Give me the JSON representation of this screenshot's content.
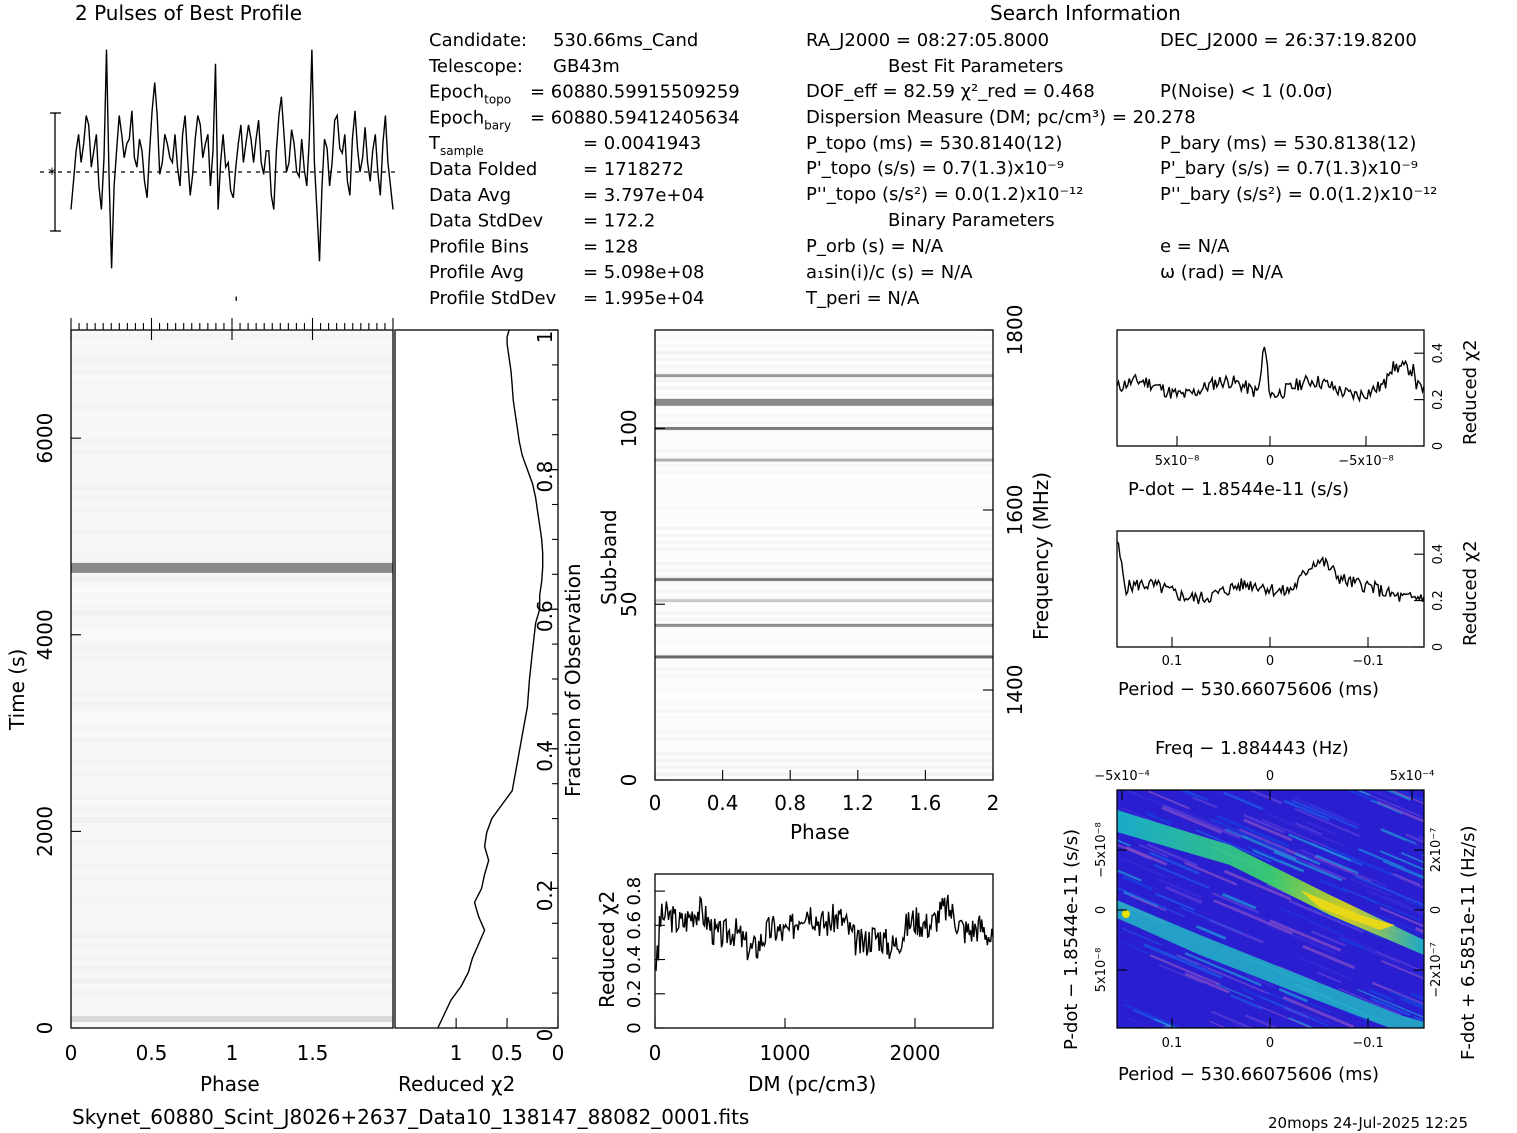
{
  "colors": {
    "ink": "#000000",
    "paper": "#ffffff",
    "plane_low": "#2a1fd0",
    "plane_high": "#f0e000"
  },
  "header": {
    "profile_title": "2 Pulses of Best Profile",
    "search_title": "Search Information",
    "best_fit_title": "Best Fit Parameters",
    "binary_title": "Binary Parameters"
  },
  "info_left": [
    {
      "label": "Candidate:",
      "sub": "",
      "value": "530.66ms_Cand"
    },
    {
      "label": "Telescope:",
      "sub": "",
      "value": "GB43m"
    },
    {
      "label": "Epoch",
      "sub": "topo",
      "value": "= 60880.59915509259"
    },
    {
      "label": "Epoch",
      "sub": "bary",
      "value": "= 60880.59412405634"
    },
    {
      "label": "T",
      "sub": "sample",
      "value": "=   0.0041943"
    },
    {
      "label": "Data Folded",
      "sub": "",
      "value": "=   1718272"
    },
    {
      "label": "Data Avg",
      "sub": "",
      "value": "=   3.797e+04"
    },
    {
      "label": "Data StdDev",
      "sub": "",
      "value": "=   172.2"
    },
    {
      "label": "Profile Bins",
      "sub": "",
      "value": "=   128"
    },
    {
      "label": "Profile Avg",
      "sub": "",
      "value": "=   5.098e+08"
    },
    {
      "label": "Profile StdDev",
      "sub": "",
      "value": "=   1.995e+04"
    }
  ],
  "info_mid": {
    "ra": "RA_J2000 = 08:27:05.8000",
    "dof": "DOF_eff = 82.59  χ²_red = 0.468",
    "dm": "Dispersion Measure (DM; pc/cm³) = 20.278",
    "p_topo": "P_topo (ms) =  530.8140(12)",
    "pd_topo": "P'_topo (s/s) =  0.7(1.3)x10⁻⁹",
    "pdd_topo": "P''_topo (s/s²) = 0.0(1.2)x10⁻¹²",
    "p_orb": "P_orb (s) = N/A",
    "a1": "a₁sin(i)/c (s) = N/A",
    "t_peri": "T_peri = N/A"
  },
  "info_right": {
    "dec": "DEC_J2000 = 26:37:19.8200",
    "p_noise": "P(Noise) < 1   (0.0σ)",
    "p_bary": "P_bary (ms) =  530.8138(12)",
    "pd_bary": "P'_bary (s/s) =  0.7(1.3)x10⁻⁹",
    "pdd_bary": "P''_bary (s/s²) = 0.0(1.2)x10⁻¹²",
    "e": "e = N/A",
    "omega": "ω (rad) = N/A"
  },
  "footer": {
    "filename": "Skynet_60880_Scint_J8026+2637_Data10_138147_88082_0001.fits",
    "stamp": "20mops 24-Jul-2025 12:25"
  },
  "chart_data": [
    {
      "id": "profile",
      "type": "line",
      "title": "2 Pulses of Best Profile",
      "xlim": [
        0,
        2
      ],
      "note_scale": "normalized",
      "y": [
        0.3,
        0.42,
        0.55,
        0.62,
        0.5,
        0.58,
        0.7,
        0.66,
        0.48,
        0.55,
        0.62,
        0.4,
        0.3,
        0.52,
        0.98,
        0.45,
        0.05,
        0.4,
        0.55,
        0.7,
        0.62,
        0.52,
        0.58,
        0.6,
        0.72,
        0.52,
        0.48,
        0.6,
        0.55,
        0.42,
        0.35,
        0.55,
        0.72,
        0.84,
        0.7,
        0.45,
        0.5,
        0.62,
        0.58,
        0.52,
        0.5,
        0.62,
        0.48,
        0.4,
        0.62,
        0.7,
        0.52,
        0.36,
        0.45,
        0.6,
        0.7,
        0.66,
        0.52,
        0.58,
        0.62,
        0.4,
        0.55,
        0.92,
        0.3,
        0.5,
        0.62,
        0.48,
        0.5,
        0.38,
        0.35,
        0.48,
        0.58,
        0.66,
        0.5,
        0.58,
        0.66,
        0.6,
        0.5,
        0.6,
        0.68,
        0.5,
        0.45,
        0.55,
        0.55,
        0.36,
        0.3,
        0.55,
        0.7,
        0.78,
        0.62,
        0.46,
        0.5,
        0.64,
        0.58,
        0.46,
        0.44,
        0.6,
        0.47,
        0.4,
        0.6,
        0.98,
        0.5,
        0.3,
        0.08,
        0.4,
        0.6,
        0.56,
        0.4,
        0.5,
        0.68,
        0.7,
        0.56,
        0.54,
        0.62,
        0.42,
        0.36,
        0.6,
        0.72,
        0.56,
        0.46,
        0.52,
        0.65,
        0.5,
        0.42,
        0.55,
        0.62,
        0.46,
        0.36,
        0.58,
        0.7,
        0.5,
        0.4,
        0.3
      ]
    },
    {
      "id": "time_phase",
      "type": "heatmap",
      "xlabel": "Phase",
      "ylabel": "Time (s)",
      "xlim": [
        0,
        2
      ],
      "ylim": [
        0,
        7100
      ],
      "xticks": [
        "0",
        "0.5",
        "1",
        "1.5"
      ],
      "yticks": [
        "0",
        "2000",
        "4000",
        "6000"
      ],
      "bright_band_time": 4680
    },
    {
      "id": "chi_vs_time",
      "type": "line",
      "xlabel": "Reduced χ2",
      "ylabel": "Fraction of Observation",
      "xlim": [
        1.6,
        0
      ],
      "ylim": [
        0,
        1
      ],
      "xticks": [
        "1",
        "0.5",
        "0"
      ],
      "yticks": [
        "0",
        "0.2",
        "0.4",
        "0.6",
        "0.8",
        "1"
      ],
      "x": [
        1.18,
        1.05,
        0.95,
        0.88,
        0.84,
        0.72,
        0.78,
        0.82,
        0.75,
        0.72,
        0.68,
        0.72,
        0.7,
        0.65,
        0.55,
        0.45,
        0.4,
        0.35,
        0.3,
        0.28,
        0.25,
        0.22,
        0.18,
        0.18,
        0.16,
        0.15,
        0.15,
        0.16,
        0.18,
        0.2,
        0.22,
        0.25,
        0.3,
        0.35,
        0.38,
        0.4,
        0.42,
        0.44,
        0.45,
        0.46,
        0.48,
        0.5,
        0.5,
        0.48
      ],
      "y": [
        0.0,
        0.04,
        0.06,
        0.08,
        0.1,
        0.14,
        0.16,
        0.18,
        0.2,
        0.22,
        0.24,
        0.26,
        0.28,
        0.3,
        0.32,
        0.34,
        0.38,
        0.42,
        0.46,
        0.5,
        0.54,
        0.58,
        0.6,
        0.62,
        0.64,
        0.66,
        0.68,
        0.7,
        0.72,
        0.74,
        0.76,
        0.78,
        0.8,
        0.82,
        0.84,
        0.86,
        0.88,
        0.9,
        0.92,
        0.94,
        0.96,
        0.98,
        0.99,
        1.0
      ]
    },
    {
      "id": "subband_phase",
      "type": "heatmap",
      "xlabel": "Phase",
      "ylabel": "Sub-band",
      "y2label": "Frequency (MHz)",
      "xlim": [
        0,
        2
      ],
      "ylim": [
        0,
        128
      ],
      "xticks": [
        "0",
        "0.4",
        "0.8",
        "1.2",
        "1.6",
        "2"
      ],
      "yticks": [
        "0",
        "50",
        "100"
      ],
      "y2ticks": [
        "1400",
        "1600",
        "1800"
      ],
      "dark_bands": [
        35,
        44,
        51,
        57,
        91,
        100,
        108,
        115
      ]
    },
    {
      "id": "dm_curve",
      "type": "line",
      "xlabel": "DM (pc/cm3)",
      "ylabel": "Reduced χ2",
      "xlim": [
        0,
        2600
      ],
      "ylim": [
        0,
        0.9
      ],
      "xticks": [
        "0",
        "1000",
        "2000"
      ],
      "yticks": [
        "0",
        "0.2",
        "0.4",
        "0.6",
        "0.8"
      ]
    },
    {
      "id": "pdot_curve",
      "type": "line",
      "xlabel": "P-dot − 1.8544e-11 (s/s)",
      "ylabel": "Reduced χ2",
      "xticks": [
        "5x10⁻⁸",
        "0",
        "−5x10⁻⁸"
      ],
      "yticks": [
        "0",
        "0.2",
        "0.4"
      ],
      "peak": 0.47
    },
    {
      "id": "period_curve",
      "type": "line",
      "xlabel": "Period − 530.66075606 (ms)",
      "ylabel": "Reduced χ2",
      "xticks": [
        "0.1",
        "0",
        "−0.1"
      ],
      "yticks": [
        "0",
        "0.2",
        "0.4"
      ]
    },
    {
      "id": "pp_plane",
      "type": "heatmap",
      "title": "Freq − 1.884443 (Hz)",
      "xlabel": "Period − 530.66075606 (ms)",
      "ylabel": "P-dot − 1.8544e-11 (s/s)",
      "y2label": "F-dot + 6.5851e-11 (Hz/s)",
      "xticks": [
        "0.1",
        "0",
        "−0.1"
      ],
      "x2ticks": [
        "−5x10⁻⁴",
        "0",
        "5x10⁻⁴"
      ],
      "yticks": [
        "−5x10⁻⁸",
        "0",
        "5x10⁻⁸"
      ],
      "y2ticks": [
        "2x10⁻⁷",
        "0",
        "−2x10⁻⁷"
      ]
    }
  ]
}
